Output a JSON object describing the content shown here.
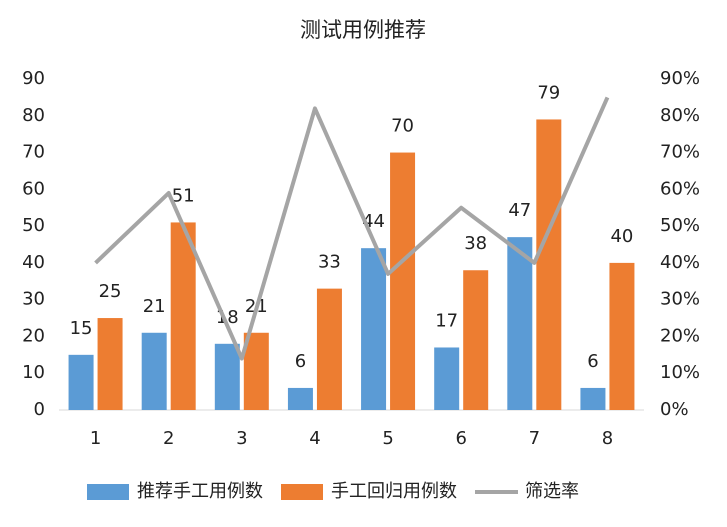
{
  "chart_data": {
    "type": "bar",
    "title": "测试用例推荐",
    "categories": [
      "1",
      "2",
      "3",
      "4",
      "5",
      "6",
      "7",
      "8"
    ],
    "series": [
      {
        "name": "推荐手工用例数",
        "color": "#5b9bd5",
        "values": [
          15,
          21,
          18,
          6,
          44,
          17,
          47,
          6
        ]
      },
      {
        "name": "手工回归用例数",
        "color": "#ed7d31",
        "values": [
          25,
          51,
          21,
          33,
          70,
          38,
          79,
          40
        ]
      },
      {
        "name": "筛选率",
        "color": "#a5a5a5",
        "type": "line",
        "axis": "y2",
        "values": [
          40,
          59,
          14,
          82,
          37,
          55,
          40,
          85
        ]
      }
    ],
    "ylim": [
      0,
      90
    ],
    "yticks": [
      0,
      10,
      20,
      30,
      40,
      50,
      60,
      70,
      80,
      90
    ],
    "y2lim": [
      0,
      90
    ],
    "y2ticks": [
      {
        "value": 0,
        "label": "0%"
      },
      {
        "value": 10,
        "label": "10%"
      },
      {
        "value": 20,
        "label": "20%"
      },
      {
        "value": 30,
        "label": "30%"
      },
      {
        "value": 40,
        "label": "40%"
      },
      {
        "value": 50,
        "label": "50%"
      },
      {
        "value": 60,
        "label": "60%"
      },
      {
        "value": 70,
        "label": "70%"
      },
      {
        "value": 80,
        "label": "80%"
      },
      {
        "value": 90,
        "label": "90%"
      }
    ],
    "grid": false,
    "legend": "bottom"
  }
}
